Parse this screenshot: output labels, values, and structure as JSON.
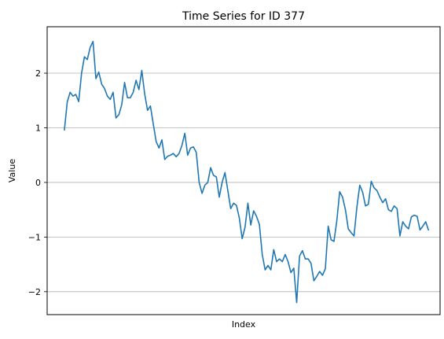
{
  "chart_data": {
    "type": "line",
    "title": "Time Series for ID 377",
    "xlabel": "Index",
    "ylabel": "Value",
    "ylim": [
      -2.42,
      2.85
    ],
    "xlim": [
      -6,
      131
    ],
    "grid": {
      "y": true,
      "x": false
    },
    "x_ticks_shown": false,
    "y_ticks": [
      {
        "value": 2,
        "label": "2"
      },
      {
        "value": 1,
        "label": "1"
      },
      {
        "value": 0,
        "label": "0"
      },
      {
        "value": -1,
        "label": "−1"
      },
      {
        "value": -2,
        "label": "−2"
      }
    ],
    "series": [
      {
        "color": "#1f77b4",
        "values": [
          0.95,
          1.47,
          1.65,
          1.58,
          1.61,
          1.48,
          2.0,
          2.3,
          2.25,
          2.47,
          2.58,
          1.9,
          2.02,
          1.8,
          1.72,
          1.58,
          1.52,
          1.65,
          1.18,
          1.24,
          1.42,
          1.83,
          1.55,
          1.55,
          1.65,
          1.87,
          1.7,
          2.05,
          1.62,
          1.32,
          1.4,
          1.07,
          0.75,
          0.63,
          0.78,
          0.42,
          0.48,
          0.5,
          0.53,
          0.47,
          0.53,
          0.68,
          0.9,
          0.5,
          0.63,
          0.65,
          0.55,
          0.0,
          -0.2,
          -0.05,
          0.0,
          0.27,
          0.13,
          0.1,
          -0.27,
          0.0,
          0.18,
          -0.15,
          -0.48,
          -0.38,
          -0.42,
          -0.65,
          -1.03,
          -0.82,
          -0.38,
          -0.78,
          -0.52,
          -0.62,
          -0.77,
          -1.32,
          -1.6,
          -1.52,
          -1.6,
          -1.23,
          -1.45,
          -1.4,
          -1.45,
          -1.32,
          -1.45,
          -1.65,
          -1.57,
          -2.2,
          -1.35,
          -1.25,
          -1.4,
          -1.4,
          -1.48,
          -1.8,
          -1.72,
          -1.63,
          -1.7,
          -1.58,
          -0.8,
          -1.05,
          -1.08,
          -0.7,
          -0.17,
          -0.27,
          -0.5,
          -0.85,
          -0.92,
          -0.98,
          -0.45,
          -0.05,
          -0.18,
          -0.43,
          -0.4,
          0.02,
          -0.1,
          -0.15,
          -0.27,
          -0.37,
          -0.3,
          -0.5,
          -0.53,
          -0.43,
          -0.48,
          -0.98,
          -0.72,
          -0.8,
          -0.85,
          -0.63,
          -0.6,
          -0.62,
          -0.87,
          -0.8,
          -0.72,
          -0.88
        ]
      }
    ]
  }
}
